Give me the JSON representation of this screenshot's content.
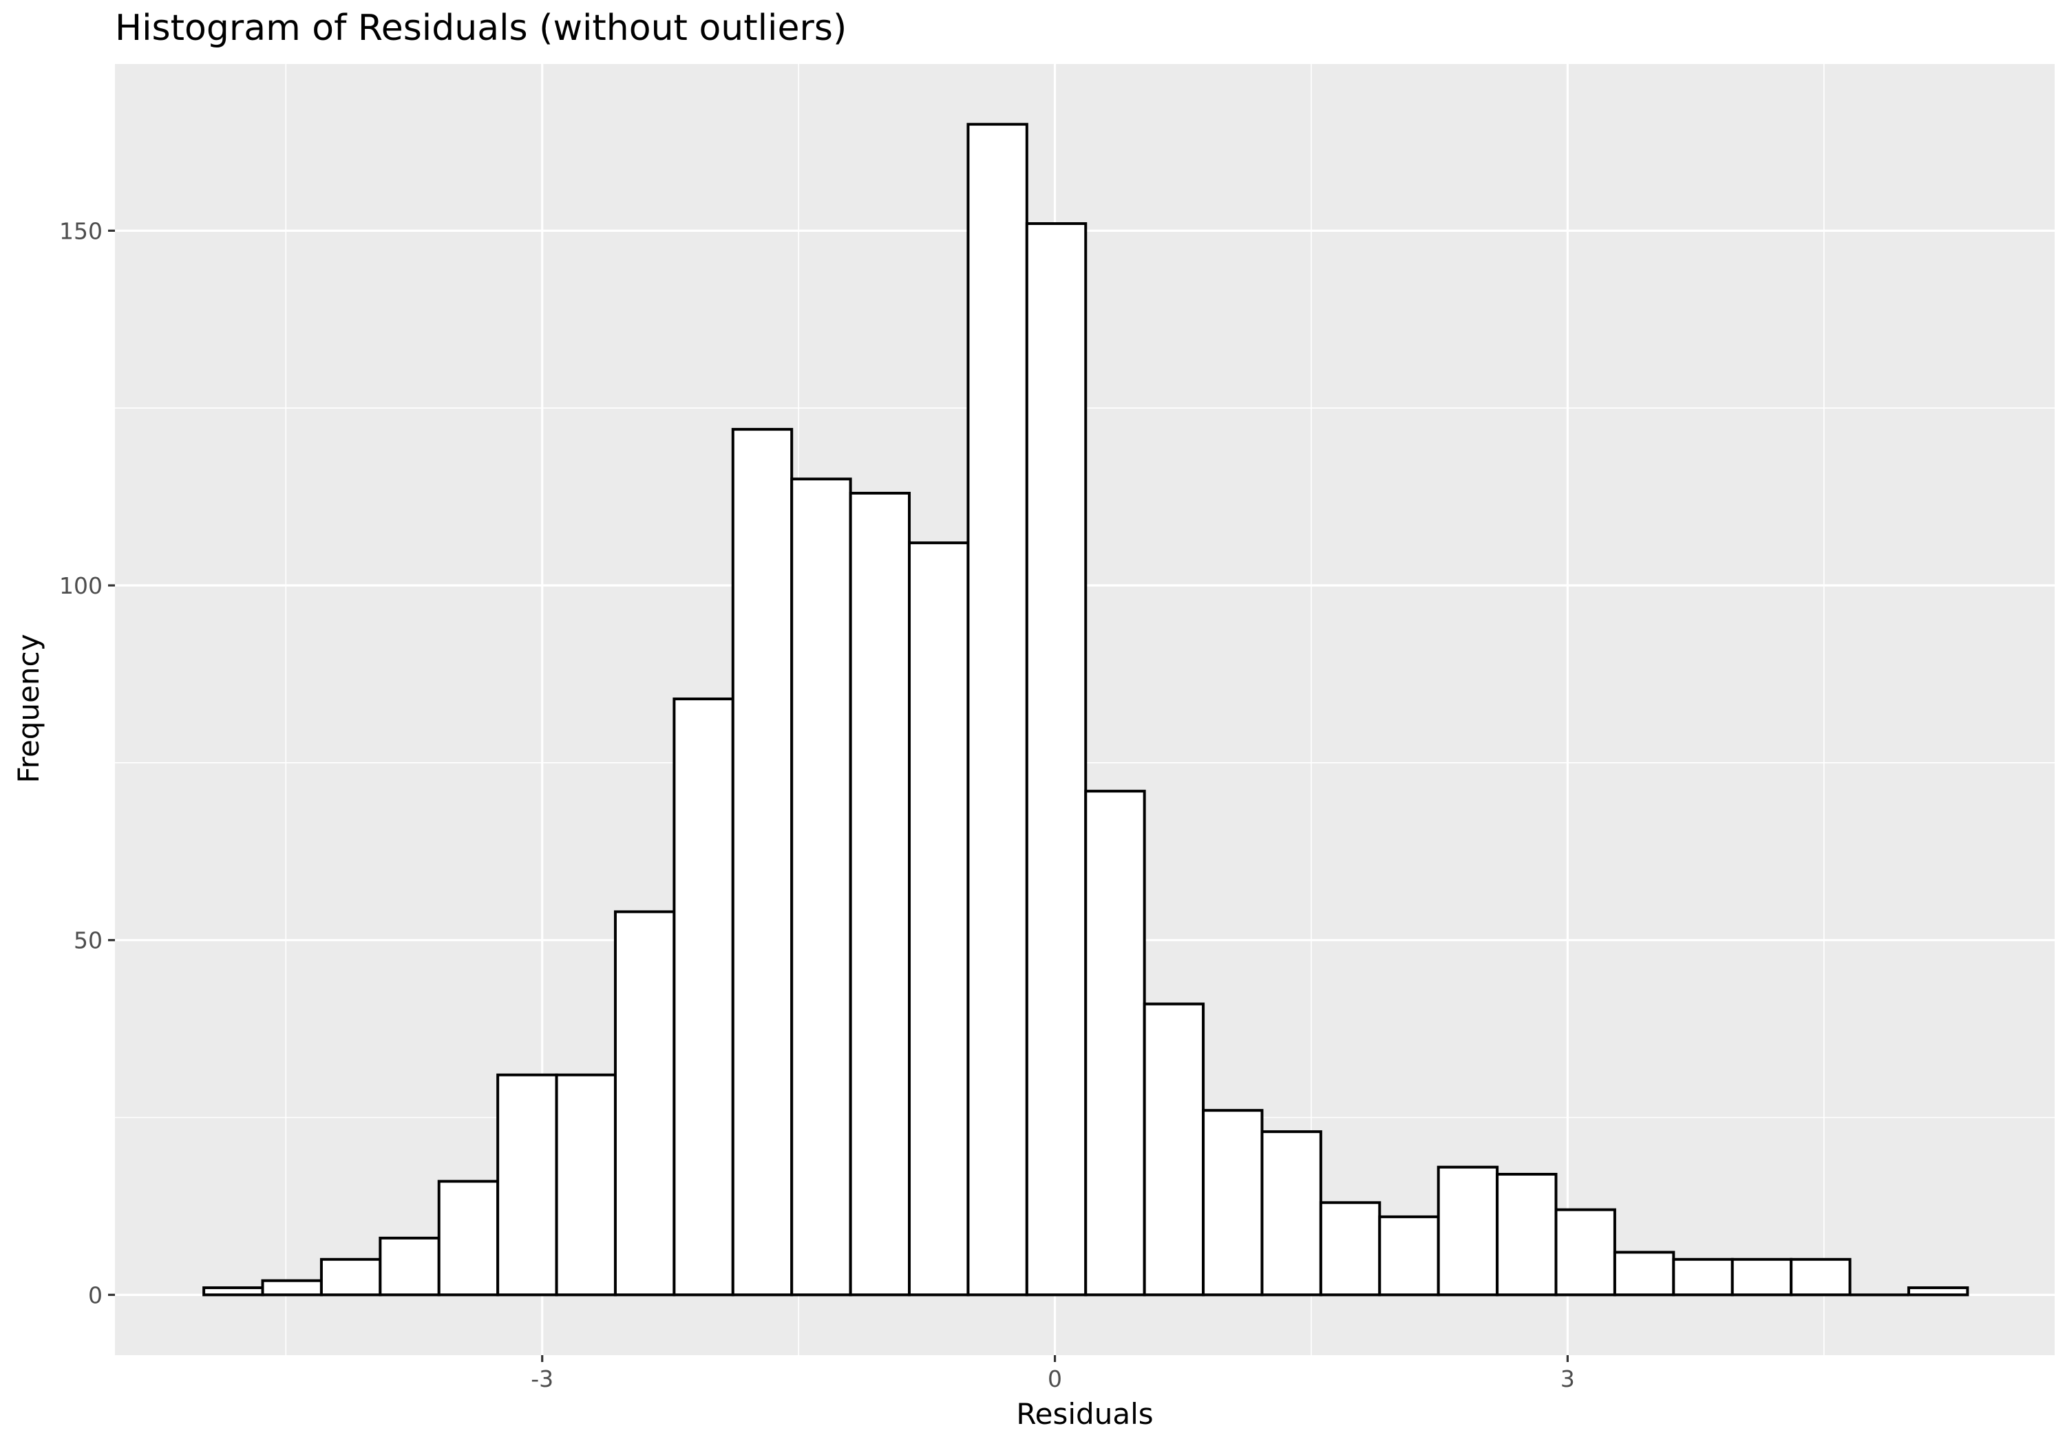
{
  "chart_data": {
    "type": "bar",
    "title": "Histogram of Residuals (without outliers)",
    "xlabel": "Residuals",
    "ylabel": "Frequency",
    "x_ticks": [
      {
        "value": -3,
        "label": "-3"
      },
      {
        "value": 0,
        "label": "0"
      },
      {
        "value": 3,
        "label": "3"
      }
    ],
    "y_ticks": [
      {
        "value": 0,
        "label": "0"
      },
      {
        "value": 50,
        "label": "50"
      },
      {
        "value": 100,
        "label": "100"
      },
      {
        "value": 150,
        "label": "150"
      }
    ],
    "xlim": [
      -5.5,
      5.85
    ],
    "ylim": [
      -8.5,
      173.5
    ],
    "grid": true,
    "bin_width": 0.344,
    "bins": [
      {
        "x_start": -4.98,
        "x_end": -4.636,
        "count": 1
      },
      {
        "x_start": -4.636,
        "x_end": -4.292,
        "count": 2
      },
      {
        "x_start": -4.292,
        "x_end": -3.948,
        "count": 5
      },
      {
        "x_start": -3.948,
        "x_end": -3.604,
        "count": 8
      },
      {
        "x_start": -3.604,
        "x_end": -3.26,
        "count": 16
      },
      {
        "x_start": -3.26,
        "x_end": -2.916,
        "count": 31
      },
      {
        "x_start": -2.916,
        "x_end": -2.572,
        "count": 31
      },
      {
        "x_start": -2.572,
        "x_end": -2.228,
        "count": 54
      },
      {
        "x_start": -2.228,
        "x_end": -1.884,
        "count": 84
      },
      {
        "x_start": -1.884,
        "x_end": -1.54,
        "count": 122
      },
      {
        "x_start": -1.54,
        "x_end": -1.196,
        "count": 115
      },
      {
        "x_start": -1.196,
        "x_end": -0.852,
        "count": 113
      },
      {
        "x_start": -0.852,
        "x_end": -0.508,
        "count": 106
      },
      {
        "x_start": -0.508,
        "x_end": -0.164,
        "count": 165
      },
      {
        "x_start": -0.164,
        "x_end": 0.18,
        "count": 151
      },
      {
        "x_start": 0.18,
        "x_end": 0.524,
        "count": 71
      },
      {
        "x_start": 0.524,
        "x_end": 0.868,
        "count": 41
      },
      {
        "x_start": 0.868,
        "x_end": 1.212,
        "count": 26
      },
      {
        "x_start": 1.212,
        "x_end": 1.556,
        "count": 23
      },
      {
        "x_start": 1.556,
        "x_end": 1.9,
        "count": 13
      },
      {
        "x_start": 1.9,
        "x_end": 2.244,
        "count": 11
      },
      {
        "x_start": 2.244,
        "x_end": 2.588,
        "count": 18
      },
      {
        "x_start": 2.588,
        "x_end": 2.932,
        "count": 17
      },
      {
        "x_start": 2.932,
        "x_end": 3.276,
        "count": 12
      },
      {
        "x_start": 3.276,
        "x_end": 3.62,
        "count": 6
      },
      {
        "x_start": 3.62,
        "x_end": 3.964,
        "count": 5
      },
      {
        "x_start": 3.964,
        "x_end": 4.308,
        "count": 5
      },
      {
        "x_start": 4.308,
        "x_end": 4.652,
        "count": 5
      },
      {
        "x_start": 4.652,
        "x_end": 4.996,
        "count": 0
      },
      {
        "x_start": 4.996,
        "x_end": 5.34,
        "count": 1
      }
    ],
    "colors": {
      "panel_background": "#ebebeb",
      "grid": "#ffffff",
      "bar_fill": "#ffffff",
      "bar_outline": "#000000",
      "tick_label": "#4d4d4d"
    }
  }
}
